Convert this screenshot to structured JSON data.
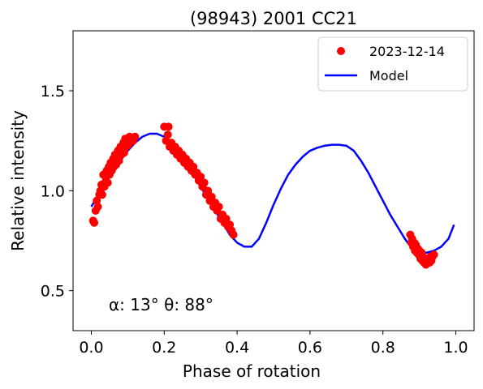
{
  "chart_data": {
    "type": "scatter",
    "title": "(98943) 2001 CC21",
    "xlabel": "Phase of rotation",
    "ylabel": "Relative intensity",
    "xlim": [
      -0.05,
      1.05
    ],
    "ylim": [
      0.3,
      1.8
    ],
    "xticks": [
      "0.0",
      "0.2",
      "0.4",
      "0.6",
      "0.8",
      "1.0"
    ],
    "xtick_values": [
      0.0,
      0.2,
      0.4,
      0.6,
      0.8,
      1.0
    ],
    "yticks": [
      "0.5",
      "1.0",
      "1.5"
    ],
    "ytick_values": [
      0.5,
      1.0,
      1.5
    ],
    "grid": false,
    "legend": "top-right",
    "annotation": "α: 13° θ: 88°",
    "colors": {
      "observations": "#ff0000",
      "model": "#0000ff"
    },
    "series": [
      {
        "name": "2023-12-14",
        "kind": "scatter",
        "x": [
          0.005,
          0.008,
          0.012,
          0.015,
          0.018,
          0.022,
          0.025,
          0.028,
          0.03,
          0.033,
          0.036,
          0.04,
          0.042,
          0.045,
          0.048,
          0.05,
          0.053,
          0.056,
          0.06,
          0.062,
          0.065,
          0.068,
          0.07,
          0.073,
          0.076,
          0.08,
          0.082,
          0.085,
          0.088,
          0.09,
          0.093,
          0.096,
          0.1,
          0.102,
          0.105,
          0.11,
          0.115,
          0.12,
          0.2,
          0.205,
          0.21,
          0.212,
          0.215,
          0.22,
          0.225,
          0.23,
          0.235,
          0.24,
          0.245,
          0.25,
          0.255,
          0.26,
          0.265,
          0.27,
          0.275,
          0.28,
          0.285,
          0.29,
          0.295,
          0.3,
          0.305,
          0.31,
          0.315,
          0.32,
          0.325,
          0.33,
          0.335,
          0.34,
          0.345,
          0.35,
          0.355,
          0.36,
          0.365,
          0.37,
          0.375,
          0.38,
          0.385,
          0.39,
          0.875,
          0.878,
          0.88,
          0.883,
          0.886,
          0.888,
          0.89,
          0.893,
          0.896,
          0.898,
          0.9,
          0.903,
          0.906,
          0.908,
          0.91,
          0.913,
          0.916,
          0.918,
          0.92,
          0.923,
          0.926,
          0.928,
          0.93,
          0.933,
          0.936,
          0.94
        ],
        "y": [
          0.85,
          0.84,
          0.9,
          0.95,
          0.92,
          0.98,
          1.0,
          1.03,
          0.98,
          1.08,
          1.02,
          1.05,
          1.1,
          1.04,
          1.12,
          1.08,
          1.14,
          1.1,
          1.16,
          1.12,
          1.18,
          1.13,
          1.17,
          1.2,
          1.15,
          1.22,
          1.18,
          1.21,
          1.24,
          1.19,
          1.26,
          1.22,
          1.25,
          1.23,
          1.27,
          1.26,
          1.25,
          1.27,
          1.32,
          1.25,
          1.28,
          1.32,
          1.22,
          1.24,
          1.2,
          1.22,
          1.18,
          1.2,
          1.16,
          1.18,
          1.14,
          1.16,
          1.12,
          1.14,
          1.1,
          1.12,
          1.08,
          1.09,
          1.05,
          1.07,
          1.02,
          1.04,
          0.98,
          1.0,
          0.95,
          0.97,
          0.92,
          0.94,
          0.9,
          0.92,
          0.86,
          0.88,
          0.84,
          0.86,
          0.82,
          0.83,
          0.8,
          0.78,
          0.78,
          0.74,
          0.76,
          0.72,
          0.74,
          0.7,
          0.73,
          0.69,
          0.71,
          0.68,
          0.7,
          0.66,
          0.69,
          0.65,
          0.67,
          0.64,
          0.66,
          0.63,
          0.65,
          0.64,
          0.66,
          0.64,
          0.67,
          0.65,
          0.67,
          0.68
        ]
      },
      {
        "name": "Model",
        "kind": "line",
        "x": [
          0.0,
          0.02,
          0.04,
          0.06,
          0.08,
          0.1,
          0.12,
          0.14,
          0.16,
          0.18,
          0.2,
          0.22,
          0.24,
          0.26,
          0.28,
          0.3,
          0.32,
          0.34,
          0.36,
          0.38,
          0.4,
          0.42,
          0.44,
          0.46,
          0.48,
          0.5,
          0.52,
          0.54,
          0.56,
          0.58,
          0.6,
          0.62,
          0.64,
          0.66,
          0.68,
          0.7,
          0.72,
          0.74,
          0.76,
          0.78,
          0.8,
          0.82,
          0.84,
          0.86,
          0.88,
          0.9,
          0.92,
          0.94,
          0.96,
          0.98,
          0.995
        ],
        "y": [
          0.92,
          0.98,
          1.04,
          1.1,
          1.15,
          1.2,
          1.24,
          1.27,
          1.285,
          1.285,
          1.27,
          1.24,
          1.19,
          1.14,
          1.08,
          1.02,
          0.96,
          0.9,
          0.84,
          0.78,
          0.74,
          0.72,
          0.72,
          0.76,
          0.84,
          0.93,
          1.01,
          1.08,
          1.13,
          1.17,
          1.2,
          1.215,
          1.225,
          1.23,
          1.23,
          1.225,
          1.2,
          1.15,
          1.09,
          1.02,
          0.95,
          0.88,
          0.82,
          0.76,
          0.71,
          0.69,
          0.69,
          0.7,
          0.72,
          0.76,
          0.83
        ]
      }
    ]
  }
}
